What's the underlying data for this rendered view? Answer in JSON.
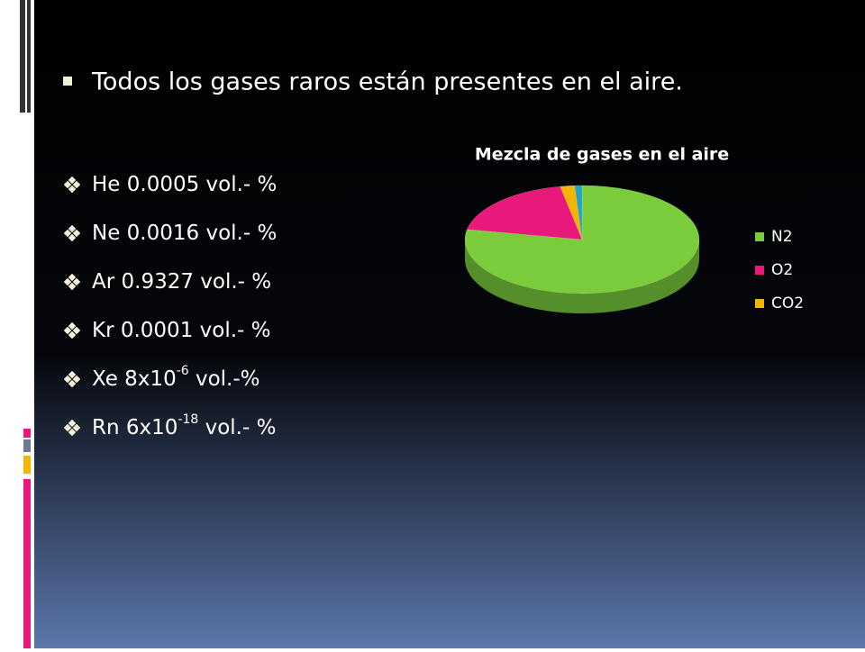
{
  "slide": {
    "heading": "Todos los gases raros están presentes en el aire.",
    "items": [
      {
        "text": "He 0.0005 vol.- %"
      },
      {
        "text": "Ne 0.0016 vol.- %"
      },
      {
        "text": "Ar  0.9327 vol.- %"
      },
      {
        "text": "Kr  0.0001 vol.- %"
      },
      {
        "text": "Xe  8x10",
        "sup": "-6",
        "after": " vol.-%"
      },
      {
        "text": "Rn  6x10",
        "sup": "-18",
        "after": " vol.- %"
      }
    ]
  },
  "chart_data": {
    "type": "pie3d",
    "title": "Mezcla de gases en el aire",
    "categories": [
      "N2",
      "O2",
      "CO2",
      null
    ],
    "values": [
      78,
      19,
      2,
      1
    ],
    "colors": [
      "#7acc3a",
      "#e8197a",
      "#f5b400",
      "#1fa3c9"
    ]
  }
}
